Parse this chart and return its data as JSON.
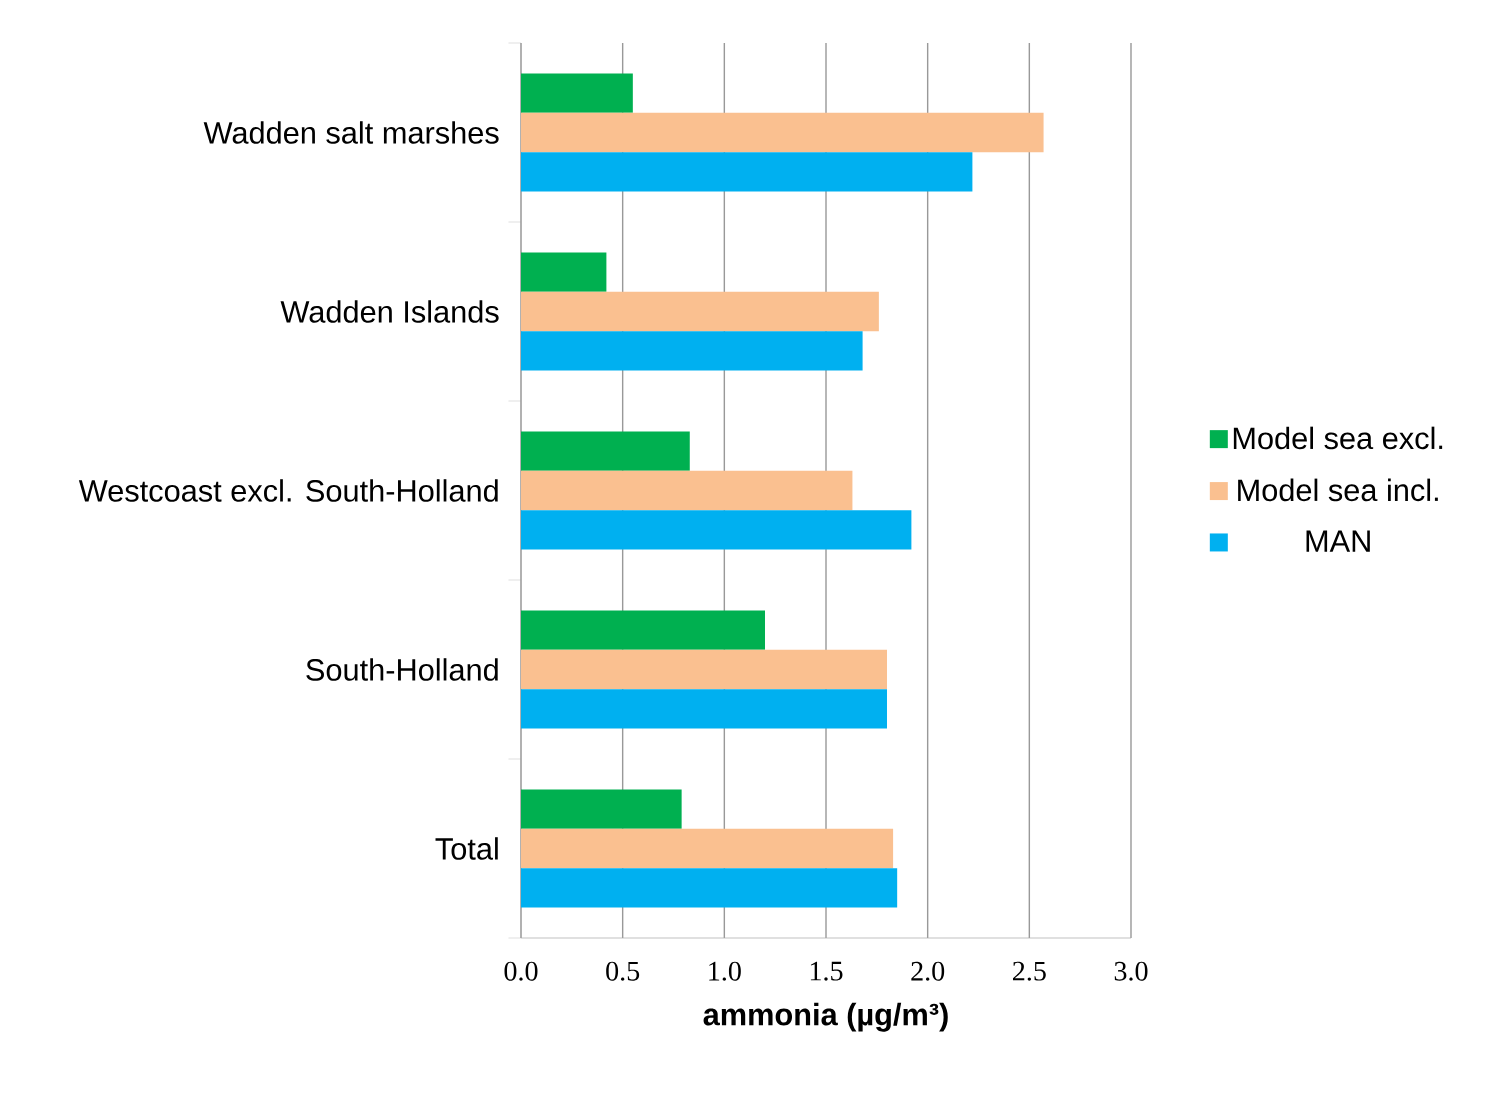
{
  "chart_data": {
    "type": "bar",
    "orientation": "horizontal",
    "xlabel": "ammonia (µg/m³)",
    "categories": [
      "Wadden salt marshes",
      "Wadden Islands",
      "Westcoast excl. South-Holland",
      "South-Holland",
      "Total"
    ],
    "series": [
      {
        "name": "Model sea excl.",
        "color": "#00b050",
        "values": [
          0.55,
          0.42,
          0.83,
          1.2,
          0.79
        ]
      },
      {
        "name": "Model sea incl.",
        "color": "#fac090",
        "values": [
          2.57,
          1.76,
          1.63,
          1.8,
          1.83
        ]
      },
      {
        "name": "MAN",
        "color": "#00b0f0",
        "values": [
          2.22,
          1.68,
          1.92,
          1.8,
          1.85
        ]
      }
    ],
    "xlim": [
      0,
      3
    ],
    "xticks": [
      {
        "value": 0,
        "label": "0.0"
      },
      {
        "value": 0.5,
        "label": "0.5"
      },
      {
        "value": 1,
        "label": "1.0"
      },
      {
        "value": 1.5,
        "label": "1.5"
      },
      {
        "value": 2,
        "label": "2.0"
      },
      {
        "value": 2.5,
        "label": "2.5"
      },
      {
        "value": 3,
        "label": "3.0"
      }
    ],
    "grid": "x",
    "legend": "right"
  }
}
